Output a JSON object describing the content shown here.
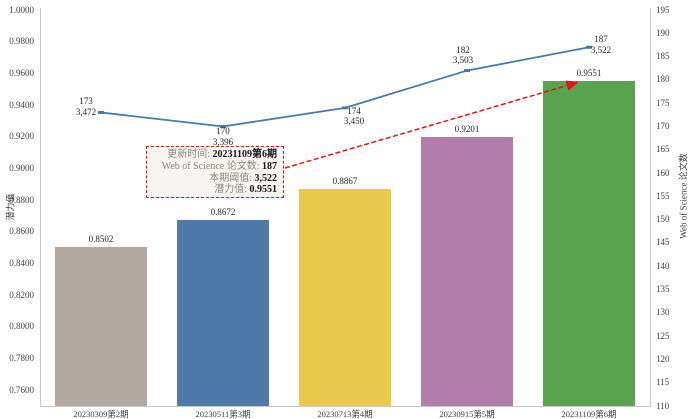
{
  "chart_data": {
    "type": "combo-bar-line",
    "title": "",
    "categories": [
      "20230309第2期",
      "20230511第3期",
      "20230713第4期",
      "20230915第5期",
      "20231109第6期"
    ],
    "series": [
      {
        "name": "潜力值",
        "type": "bar",
        "axis": "left",
        "values": [
          0.8502,
          0.8672,
          0.8867,
          0.9201,
          0.9551
        ],
        "labels": [
          "0.8502",
          "0.8672",
          "0.8867",
          "0.9201",
          "0.9551"
        ],
        "bar_colors": [
          "#b1a9a1",
          "#4d7aa8",
          "#eac849",
          "#b17daa",
          "#5aa24f"
        ]
      },
      {
        "name": "Web of Science 论文数",
        "type": "line",
        "axis": "right",
        "values": [
          173,
          170,
          174,
          182,
          187
        ],
        "point_labels": [
          [
            "173",
            "3,472"
          ],
          [
            "170",
            "3,396"
          ],
          [
            "174",
            "3,450"
          ],
          [
            "182",
            "3,503"
          ],
          [
            "187",
            "3,522"
          ]
        ],
        "color": "#4a78ab"
      }
    ],
    "left_axis": {
      "title": "潜力值",
      "range": [
        0.75,
        1.0
      ],
      "ticks": [
        "1.0000",
        "0.9800",
        "0.9600",
        "0.9400",
        "0.9200",
        "0.9000",
        "0.8800",
        "0.8600",
        "0.8400",
        "0.8200",
        "0.8000",
        "0.7800",
        "0.7600"
      ]
    },
    "right_axis": {
      "title": "Web of Science 论文数",
      "range": [
        110,
        195
      ],
      "ticks": [
        "195",
        "190",
        "185",
        "180",
        "175",
        "170",
        "165",
        "160",
        "155",
        "150",
        "145",
        "140",
        "135",
        "130",
        "125",
        "120",
        "115",
        "110"
      ]
    },
    "grid": false,
    "legend": "none"
  },
  "tooltip": {
    "border_color": "#e51414",
    "arrow_color": "#e51414",
    "rows": [
      {
        "label": "更新时间: ",
        "value": "20231109第6期"
      },
      {
        "label": "Web of Science 论文数: ",
        "value": "187"
      },
      {
        "label": "本期阈值: ",
        "value": "3,522"
      },
      {
        "label": "潜力值: ",
        "value": "0.9551"
      }
    ]
  }
}
